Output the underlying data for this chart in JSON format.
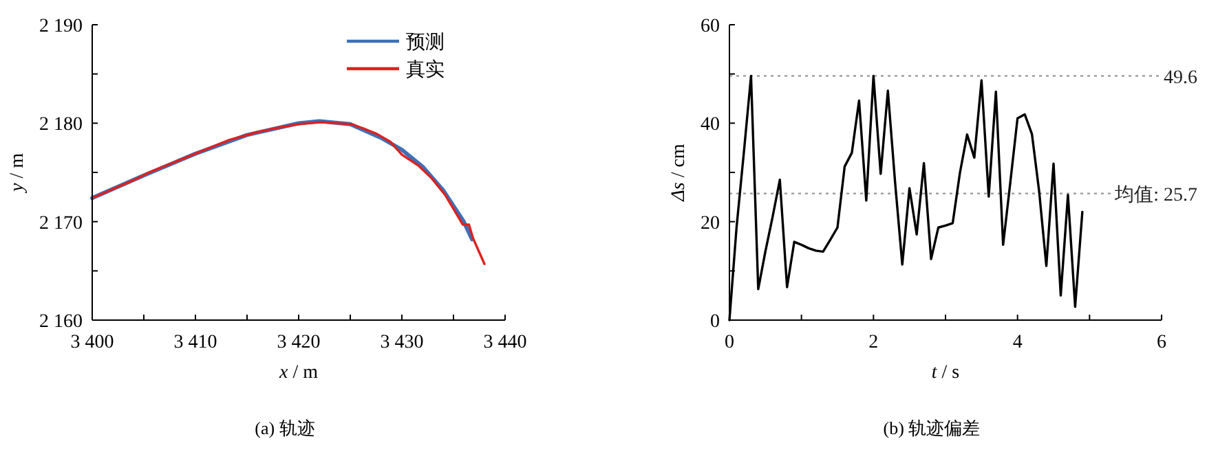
{
  "chart_data": [
    {
      "type": "line",
      "title": "(a)  轨迹",
      "xlabel": "*x* / m",
      "ylabel": "*y* / m",
      "legend": "top right",
      "grid": false,
      "xlim": [
        3400,
        3440
      ],
      "ylim": [
        2160,
        2190
      ],
      "xticks": [
        {
          "value": 3400,
          "label": "3 400"
        },
        {
          "value": 3405,
          "label": null
        },
        {
          "value": 3410,
          "label": "3 410"
        },
        {
          "value": 3415,
          "label": null
        },
        {
          "value": 3420,
          "label": "3 420"
        },
        {
          "value": 3425,
          "label": null
        },
        {
          "value": 3430,
          "label": "3 430"
        },
        {
          "value": 3435,
          "label": null
        },
        {
          "value": 3440,
          "label": "3 440"
        }
      ],
      "yticks": [
        {
          "value": 2160,
          "label": "2 160"
        },
        {
          "value": 2165,
          "label": null
        },
        {
          "value": 2170,
          "label": "2 170"
        },
        {
          "value": 2175,
          "label": null
        },
        {
          "value": 2180,
          "label": "2 180"
        },
        {
          "value": 2185,
          "label": null
        },
        {
          "value": 2190,
          "label": "2 190"
        }
      ],
      "series": [
        {
          "name": "预测",
          "color": "#3f6fb5",
          "x": [
            3400,
            3405,
            3410,
            3415,
            3420,
            3422,
            3425,
            3428,
            3430,
            3432,
            3434,
            3436,
            3436.8
          ],
          "values": [
            2172.4,
            2174.7,
            2176.9,
            2178.8,
            2180.0,
            2180.2,
            2179.9,
            2178.5,
            2177.3,
            2175.6,
            2173.2,
            2170.0,
            2168.2
          ]
        },
        {
          "name": "真实",
          "color": "#e0201e",
          "x": [
            3400,
            3404.4,
            3405.3,
            3410.2,
            3413.3,
            3416,
            3416.9,
            3417.8,
            3420,
            3422.2,
            3425.1,
            3426.2,
            3427.6,
            3428.9,
            3430,
            3431.6,
            3432.9,
            3434.2,
            3435.9,
            3436.5,
            3436.9,
            3438
          ],
          "values": [
            2172.4,
            2174.4,
            2174.9,
            2177.0,
            2178.3,
            2179.1,
            2179.3,
            2179.5,
            2179.9,
            2180.1,
            2179.9,
            2179.5,
            2178.9,
            2178.1,
            2176.8,
            2175.7,
            2174.4,
            2172.7,
            2169.7,
            2169.7,
            2168.3,
            2165.7
          ]
        }
      ]
    },
    {
      "type": "line",
      "title": "(b)  轨迹偏差",
      "xlabel": "*t* / s",
      "ylabel": "*Δs* / cm",
      "grid": false,
      "xlim": [
        0,
        6
      ],
      "ylim": [
        0,
        60
      ],
      "xticks": [
        0,
        {
          "value": 1,
          "label": null
        },
        2,
        {
          "value": 3,
          "label": null
        },
        4,
        {
          "value": 5,
          "label": null
        },
        6
      ],
      "yticks": [
        0,
        {
          "value": 10,
          "label": null
        },
        20,
        {
          "value": 30,
          "label": null
        },
        40,
        {
          "value": 50,
          "label": null
        },
        60
      ],
      "series": [
        {
          "color": "#000000",
          "x": [
            0,
            0.1,
            0.2,
            0.3,
            0.4,
            0.5,
            0.6,
            0.7,
            0.8,
            0.9,
            1.0,
            1.1,
            1.2,
            1.3,
            1.4,
            1.5,
            1.6,
            1.7,
            1.8,
            1.9,
            2.0,
            2.1,
            2.2,
            2.3,
            2.4,
            2.5,
            2.6,
            2.7,
            2.8,
            2.9,
            3.0,
            3.1,
            3.2,
            3.3,
            3.4,
            3.5,
            3.6,
            3.7,
            3.8,
            3.9,
            4.0,
            4.1,
            4.2,
            4.3,
            4.4,
            4.5,
            4.6,
            4.7,
            4.8,
            4.9
          ],
          "values": [
            0,
            19,
            34,
            49.6,
            6.3,
            14,
            21,
            28.5,
            6.7,
            15.9,
            15.3,
            14.6,
            14.1,
            13.9,
            16.3,
            18.8,
            31.2,
            34,
            44.6,
            24.3,
            49.6,
            29.7,
            46.6,
            28,
            11.3,
            26.8,
            17.4,
            31.9,
            12.4,
            18.8,
            19.2,
            19.7,
            29.9,
            37.7,
            33,
            48.7,
            25.1,
            46.4,
            15.3,
            28,
            41,
            41.8,
            37.8,
            26.2,
            11,
            31.8,
            5,
            25.4,
            2.7,
            22
          ]
        }
      ],
      "ref_lines": [
        {
          "axis": "y",
          "value": 49.6,
          "label": "49.6",
          "color": "#a0a0a0",
          "line_style": "dotted"
        },
        {
          "axis": "y",
          "value": 25.7,
          "label": "均值: 25.7",
          "color": "#a0a0a0",
          "line_style": "dotted"
        }
      ]
    }
  ]
}
